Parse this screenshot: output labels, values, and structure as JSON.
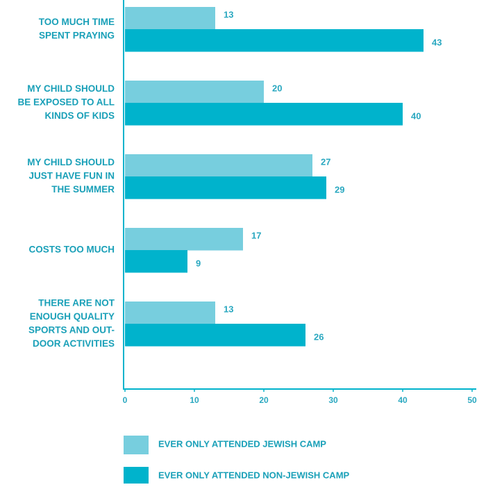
{
  "chart_data": {
    "type": "hbar",
    "categories": [
      [
        "TOO MUCH TIME",
        "SPENT PRAYING"
      ],
      [
        "MY CHILD SHOULD",
        "BE EXPOSED TO ALL",
        "KINDS OF KIDS"
      ],
      [
        "MY CHILD SHOULD",
        "JUST HAVE FUN IN",
        "THE SUMMER"
      ],
      [
        "COSTS TOO MUCH"
      ],
      [
        "THERE ARE NOT",
        "ENOUGH QUALITY",
        "SPORTS AND OUT-",
        "DOOR ACTIVITIES"
      ]
    ],
    "series": [
      {
        "name": "EVER ONLY ATTENDED JEWISH CAMP",
        "color": "#77cede",
        "values": [
          13,
          20,
          27,
          17,
          13
        ]
      },
      {
        "name": "EVER ONLY ATTENDED NON-JEWISH CAMP",
        "color": "#00b3cc",
        "values": [
          43,
          40,
          29,
          9,
          26
        ]
      }
    ],
    "xlim": [
      0,
      50
    ],
    "xticks": [
      0,
      10,
      20,
      30,
      40,
      50
    ]
  }
}
